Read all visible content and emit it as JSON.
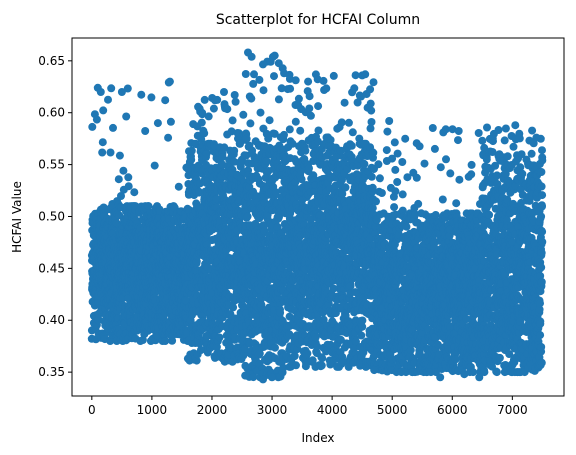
{
  "chart_data": {
    "type": "scatter",
    "title": "Scatterplot for HCFAI Column",
    "xlabel": "Index",
    "ylabel": "HCFAI Value",
    "xlim": [
      -330,
      7860
    ],
    "ylim": [
      0.327,
      0.672
    ],
    "xticks": [
      0,
      1000,
      2000,
      3000,
      4000,
      5000,
      6000,
      7000
    ],
    "xtick_labels": [
      "0",
      "1000",
      "2000",
      "3000",
      "4000",
      "5000",
      "6000",
      "7000"
    ],
    "yticks": [
      0.35,
      0.4,
      0.45,
      0.5,
      0.55,
      0.6,
      0.65
    ],
    "ytick_labels": [
      "0.35",
      "0.40",
      "0.45",
      "0.50",
      "0.55",
      "0.60",
      "0.65"
    ],
    "grid": false,
    "legend": "none",
    "point_color": "#1f77b4",
    "series": [
      {
        "points_count": 7500,
        "x_range": [
          0,
          7500
        ],
        "segments": [
          {
            "x": [
              0,
              800
            ],
            "y_range": [
              0.38,
              0.51
            ],
            "center": 0.45,
            "outliers_max": 0.625
          },
          {
            "x": [
              800,
              1600
            ],
            "y_range": [
              0.38,
              0.51
            ],
            "center": 0.44,
            "outliers_max": 0.63
          },
          {
            "x": [
              1600,
              2500
            ],
            "y_range": [
              0.36,
              0.57
            ],
            "center": 0.47,
            "outliers_max": 0.62
          },
          {
            "x": [
              2500,
              3200
            ],
            "y_range": [
              0.345,
              0.58
            ],
            "center": 0.45,
            "outliers_max": 0.658
          },
          {
            "x": [
              3200,
              4700
            ],
            "y_range": [
              0.355,
              0.57
            ],
            "center": 0.46,
            "outliers_max": 0.637
          },
          {
            "x": [
              4700,
              6500
            ],
            "y_range": [
              0.35,
              0.503
            ],
            "center": 0.43,
            "outliers_max": 0.59
          },
          {
            "x": [
              6500,
              7500
            ],
            "y_range": [
              0.35,
              0.56
            ],
            "center": 0.44,
            "outliers_max": 0.59
          }
        ],
        "sample_points": [
          [
            2600,
            0.658
          ],
          [
            3200,
            0.638
          ],
          [
            2700,
            0.637
          ],
          [
            4500,
            0.636
          ],
          [
            4550,
            0.637
          ],
          [
            3600,
            0.63
          ],
          [
            1300,
            0.63
          ],
          [
            100,
            0.624
          ],
          [
            150,
            0.62
          ],
          [
            500,
            0.62
          ],
          [
            2200,
            0.62
          ],
          [
            2050,
            0.612
          ],
          [
            7050,
            0.588
          ],
          [
            6500,
            0.573
          ],
          [
            6650,
            0.574
          ],
          [
            7400,
            0.576
          ],
          [
            4950,
            0.592
          ],
          [
            1100,
            0.59
          ],
          [
            2850,
            0.343
          ],
          [
            3000,
            0.345
          ],
          [
            5800,
            0.345
          ],
          [
            6200,
            0.348
          ],
          [
            6450,
            0.345
          ],
          [
            1600,
            0.363
          ],
          [
            4700,
            0.352
          ]
        ]
      }
    ]
  }
}
